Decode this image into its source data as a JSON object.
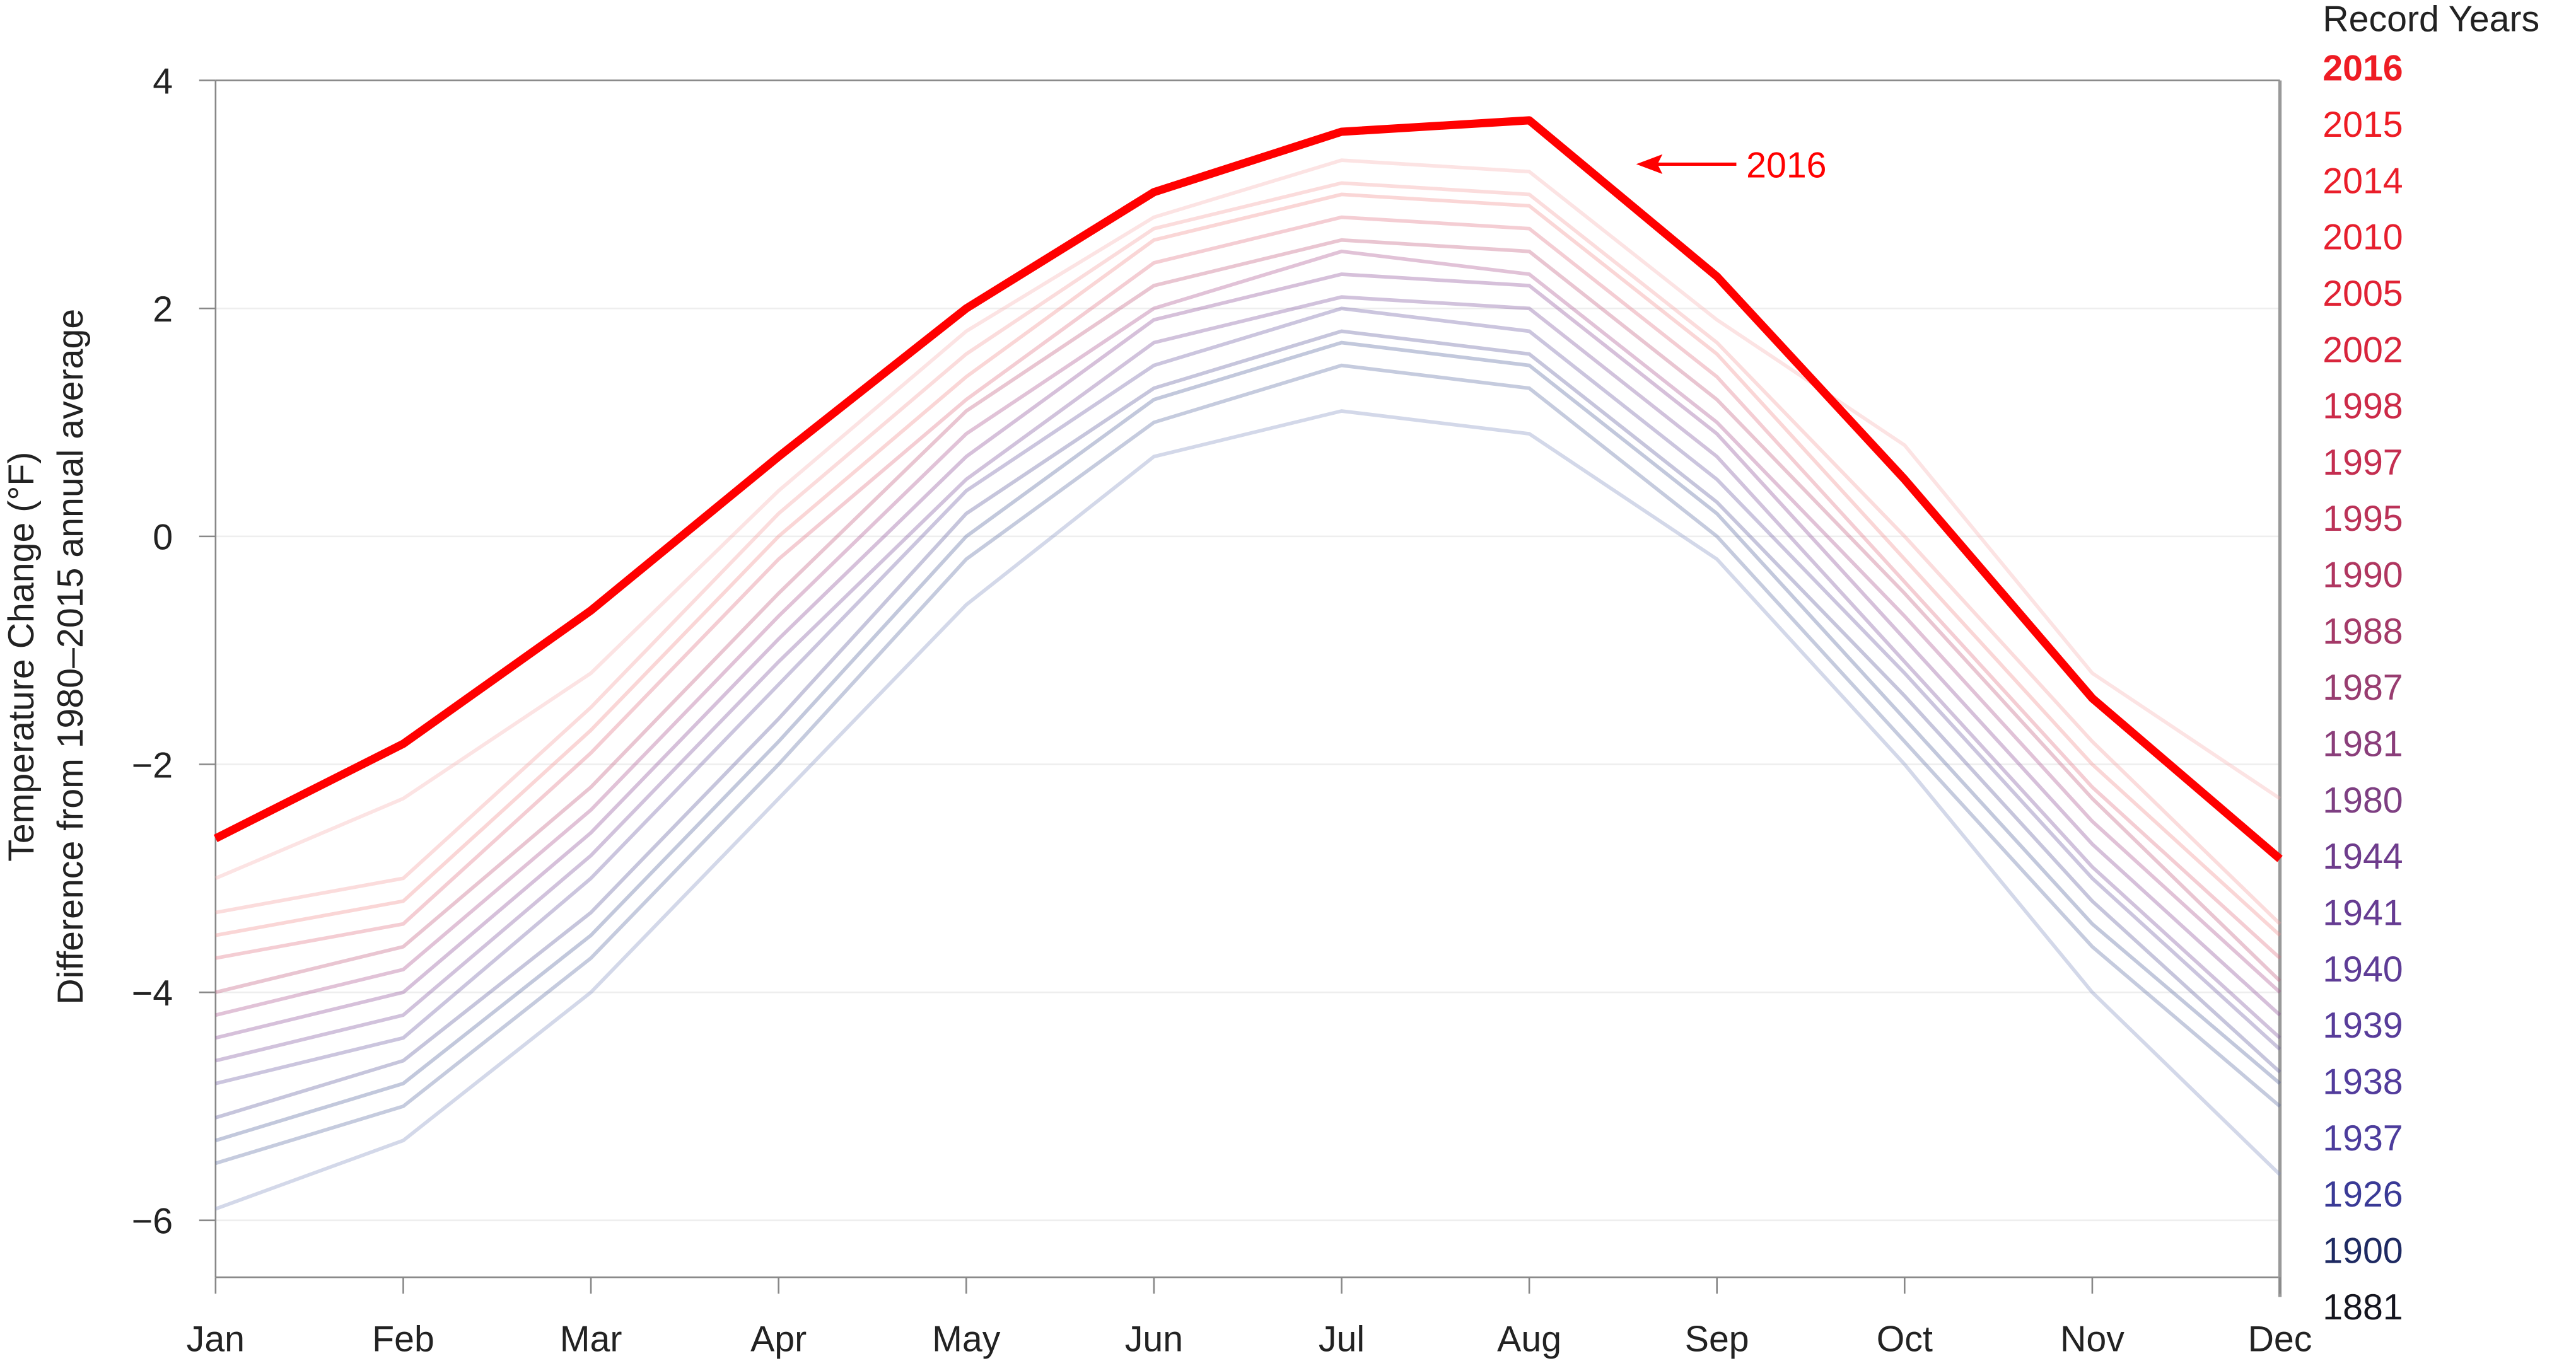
{
  "chart_data": {
    "type": "line",
    "title": "",
    "ylabel_line1": "Temperature Change (°F)",
    "ylabel_line2": "Difference from 1980–2015 annual average",
    "xlabel": "",
    "categories": [
      "Jan",
      "Feb",
      "Mar",
      "Apr",
      "May",
      "Jun",
      "Jul",
      "Aug",
      "Sep",
      "Oct",
      "Nov",
      "Dec"
    ],
    "ylim": [
      -6.5,
      4
    ],
    "yticks": [
      4,
      2,
      0,
      -2,
      -4,
      -6
    ],
    "ytick_labels": [
      "4",
      "2",
      "0",
      "−2",
      "−4",
      "−6"
    ],
    "grid": true,
    "highlight_series": {
      "name": "2016",
      "color": "#ff0000",
      "values": [
        -2.65,
        -1.82,
        -0.65,
        0.7,
        2.0,
        3.02,
        3.55,
        3.65,
        2.28,
        0.5,
        -1.42,
        -2.83
      ]
    },
    "annotation": {
      "text": "2016",
      "color": "#ff0000",
      "arrow": true
    },
    "background_series": [
      {
        "color": "#8090c0",
        "values": [
          -5.9,
          -5.3,
          -4.0,
          -2.3,
          -0.6,
          0.7,
          1.1,
          0.9,
          -0.2,
          -2.0,
          -4.0,
          -5.6
        ]
      },
      {
        "color": "#5a6aa0",
        "values": [
          -5.5,
          -5.0,
          -3.7,
          -2.0,
          -0.2,
          1.0,
          1.5,
          1.3,
          0.0,
          -1.8,
          -3.6,
          -5.0
        ]
      },
      {
        "color": "#50609a",
        "values": [
          -5.3,
          -4.8,
          -3.5,
          -1.8,
          0.0,
          1.2,
          1.7,
          1.5,
          0.2,
          -1.6,
          -3.4,
          -4.8
        ]
      },
      {
        "color": "#5c5a9a",
        "values": [
          -5.1,
          -4.6,
          -3.3,
          -1.6,
          0.2,
          1.3,
          1.8,
          1.6,
          0.3,
          -1.4,
          -3.2,
          -4.7
        ]
      },
      {
        "color": "#6a5aa0",
        "values": [
          -4.8,
          -4.4,
          -3.0,
          -1.3,
          0.4,
          1.5,
          2.0,
          1.8,
          0.5,
          -1.2,
          -3.0,
          -4.5
        ]
      },
      {
        "color": "#7a4f9c",
        "values": [
          -4.6,
          -4.2,
          -2.8,
          -1.1,
          0.5,
          1.7,
          2.1,
          2.0,
          0.7,
          -1.1,
          -2.9,
          -4.4
        ]
      },
      {
        "color": "#8a4a96",
        "values": [
          -4.4,
          -4.0,
          -2.6,
          -0.9,
          0.7,
          1.9,
          2.3,
          2.2,
          0.9,
          -0.9,
          -2.7,
          -4.2
        ]
      },
      {
        "color": "#a8508c",
        "values": [
          -4.2,
          -3.8,
          -2.4,
          -0.7,
          0.9,
          2.0,
          2.5,
          2.3,
          1.0,
          -0.7,
          -2.5,
          -4.0
        ]
      },
      {
        "color": "#c0587a",
        "values": [
          -4.0,
          -3.6,
          -2.2,
          -0.5,
          1.1,
          2.2,
          2.6,
          2.5,
          1.2,
          -0.5,
          -2.3,
          -3.9
        ]
      },
      {
        "color": "#e07080",
        "values": [
          -3.7,
          -3.4,
          -1.9,
          -0.2,
          1.2,
          2.4,
          2.8,
          2.7,
          1.4,
          -0.4,
          -2.2,
          -3.7
        ]
      },
      {
        "color": "#f08a8a",
        "values": [
          -3.5,
          -3.2,
          -1.7,
          0.0,
          1.4,
          2.6,
          3.0,
          2.9,
          1.6,
          -0.2,
          -2.0,
          -3.5
        ]
      },
      {
        "color": "#f49a9a",
        "values": [
          -3.3,
          -3.0,
          -1.5,
          0.2,
          1.6,
          2.7,
          3.1,
          3.0,
          1.7,
          0.0,
          -1.8,
          -3.4
        ]
      },
      {
        "color": "#f5b0b0",
        "values": [
          -3.0,
          -2.3,
          -1.2,
          0.4,
          1.8,
          2.8,
          3.3,
          3.2,
          1.9,
          0.8,
          -1.2,
          -2.3
        ]
      }
    ]
  },
  "legend": {
    "title": "Record Years",
    "items": [
      {
        "label": "2016",
        "color": "#ee1c24",
        "bold": true
      },
      {
        "label": "2015",
        "color": "#ee1c24"
      },
      {
        "label": "2014",
        "color": "#ea1e2a"
      },
      {
        "label": "2010",
        "color": "#e61f2e"
      },
      {
        "label": "2005",
        "color": "#e02234"
      },
      {
        "label": "2002",
        "color": "#d8253c"
      },
      {
        "label": "1998",
        "color": "#cc2a48"
      },
      {
        "label": "1997",
        "color": "#c42e50"
      },
      {
        "label": "1995",
        "color": "#bb3258"
      },
      {
        "label": "1990",
        "color": "#b03660"
      },
      {
        "label": "1988",
        "color": "#a43a68"
      },
      {
        "label": "1987",
        "color": "#983d70"
      },
      {
        "label": "1981",
        "color": "#8a3e7a"
      },
      {
        "label": "1980",
        "color": "#7e3f82"
      },
      {
        "label": "1944",
        "color": "#6e3c8c"
      },
      {
        "label": "1941",
        "color": "#663c92"
      },
      {
        "label": "1940",
        "color": "#5e3c96"
      },
      {
        "label": "1939",
        "color": "#583c9a"
      },
      {
        "label": "1938",
        "color": "#523c9c"
      },
      {
        "label": "1937",
        "color": "#4c3c9c"
      },
      {
        "label": "1926",
        "color": "#3a3a96"
      },
      {
        "label": "1900",
        "color": "#1e2a62"
      },
      {
        "label": "1881",
        "color": "#15151f"
      }
    ]
  }
}
